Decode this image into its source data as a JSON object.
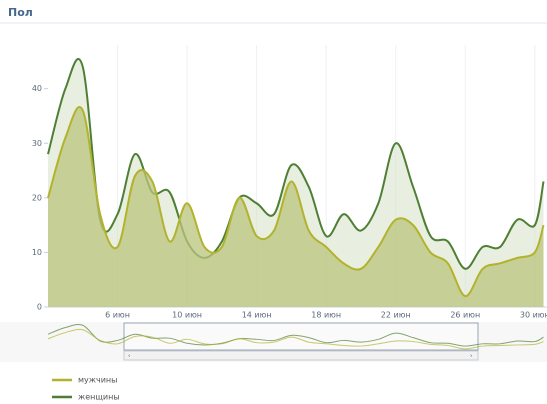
{
  "chart_data": {
    "type": "area",
    "title": "Пол",
    "x": [
      2,
      3,
      4,
      5,
      6,
      7,
      8,
      9,
      10,
      11,
      12,
      13,
      14,
      15,
      16,
      17,
      18,
      19,
      20,
      21,
      22,
      23,
      24,
      25,
      26,
      27,
      28,
      29,
      30,
      30.5
    ],
    "series": [
      {
        "name": "мужчины",
        "color": "#b3b22c",
        "values": [
          20,
          31,
          36,
          17,
          11,
          24,
          23,
          12,
          19,
          11,
          11,
          20,
          13,
          14,
          23,
          14,
          11,
          8,
          7,
          11,
          16,
          15,
          10,
          8,
          2,
          7,
          8,
          9,
          10,
          15
        ]
      },
      {
        "name": "женщины",
        "color": "#4f7f35",
        "values": [
          28,
          40,
          44,
          16,
          17,
          28,
          21,
          21,
          12,
          9,
          12,
          20,
          19,
          17,
          26,
          22,
          13,
          17,
          14,
          19,
          30,
          22,
          13,
          12,
          7,
          11,
          11,
          16,
          15,
          23
        ]
      }
    ],
    "xlim": [
      2,
      30.7
    ],
    "xticks": [
      {
        "value": 6,
        "label": "6 июн"
      },
      {
        "value": 10,
        "label": "10 июн"
      },
      {
        "value": 14,
        "label": "14 июн"
      },
      {
        "value": 18,
        "label": "18 июн"
      },
      {
        "value": 22,
        "label": "22 июн"
      },
      {
        "value": 26,
        "label": "26 июн"
      },
      {
        "value": 30,
        "label": "30 июн"
      }
    ],
    "ylim": [
      0,
      48
    ],
    "yticks": [
      0,
      10,
      20,
      30,
      40
    ],
    "grid": true
  }
}
